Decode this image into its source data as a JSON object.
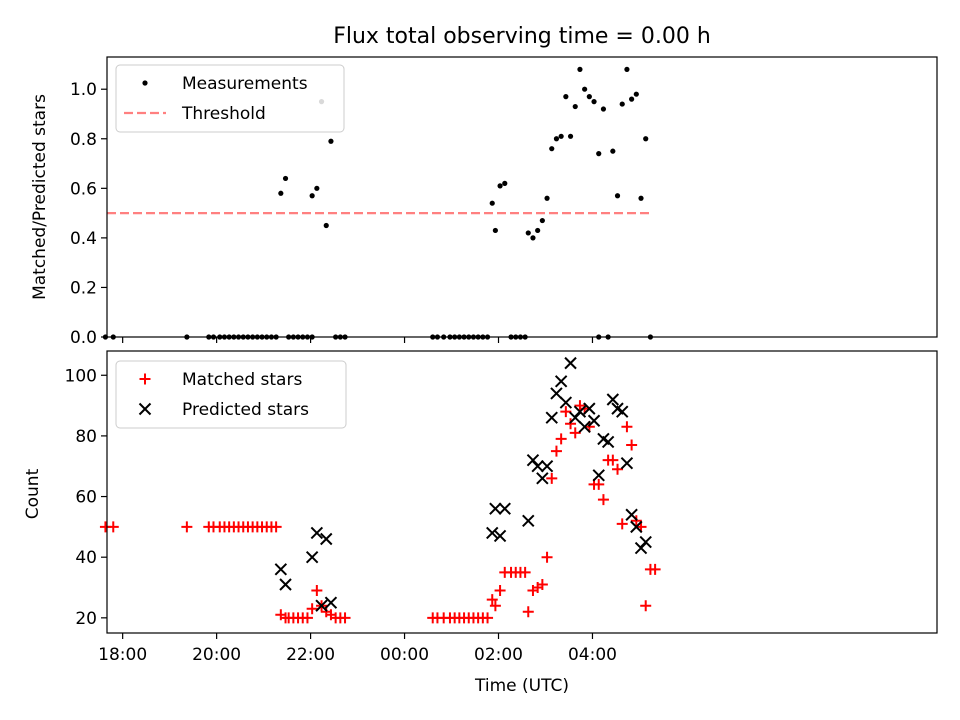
{
  "chart_data": [
    {
      "type": "scatter",
      "title": "Flux total observing time = 0.00 h",
      "xlabel": "",
      "ylabel": "Matched/Predicted stars",
      "xlim": [
        -380,
        680
      ],
      "ylim": [
        0,
        1.13
      ],
      "xticks": [
        -360,
        -240,
        -120,
        0,
        120,
        240
      ],
      "yticks": [
        0.0,
        0.2,
        0.4,
        0.6,
        0.8,
        1.0
      ],
      "ytick_labels": [
        "0.0",
        "0.2",
        "0.4",
        "0.6",
        "0.8",
        "1.0"
      ],
      "legend_position": "upper left",
      "series": [
        {
          "name": "Measurements",
          "marker": "dot",
          "color": "#000000",
          "points": [
            [
              -382,
              0
            ],
            [
              -372,
              0
            ],
            [
              -278,
              0
            ],
            [
              -250,
              0
            ],
            [
              -244,
              0
            ],
            [
              -236,
              0
            ],
            [
              -230,
              0
            ],
            [
              -224,
              0
            ],
            [
              -218,
              0
            ],
            [
              -212,
              0
            ],
            [
              -206,
              0
            ],
            [
              -200,
              0
            ],
            [
              -194,
              0
            ],
            [
              -188,
              0
            ],
            [
              -182,
              0
            ],
            [
              -176,
              0
            ],
            [
              -170,
              0
            ],
            [
              -164,
              0
            ],
            [
              -158,
              0.58
            ],
            [
              -152,
              0.64
            ],
            [
              -148,
              0
            ],
            [
              -142,
              0
            ],
            [
              -136,
              0
            ],
            [
              -130,
              0
            ],
            [
              -124,
              0
            ],
            [
              -118,
              0
            ],
            [
              -118,
              0.57
            ],
            [
              -112,
              0.6
            ],
            [
              -106,
              0.95
            ],
            [
              -100,
              0.45
            ],
            [
              -94,
              0.79
            ],
            [
              -88,
              0
            ],
            [
              -82,
              0
            ],
            [
              -76,
              0
            ],
            [
              36,
              0
            ],
            [
              42,
              0
            ],
            [
              50,
              0
            ],
            [
              58,
              0
            ],
            [
              64,
              0
            ],
            [
              70,
              0
            ],
            [
              76,
              0
            ],
            [
              82,
              0
            ],
            [
              88,
              0
            ],
            [
              94,
              0
            ],
            [
              100,
              0
            ],
            [
              106,
              0
            ],
            [
              112,
              0.54
            ],
            [
              116,
              0.43
            ],
            [
              122,
              0.61
            ],
            [
              128,
              0.62
            ],
            [
              136,
              0
            ],
            [
              142,
              0
            ],
            [
              148,
              0
            ],
            [
              154,
              0
            ],
            [
              158,
              0.42
            ],
            [
              164,
              0.4
            ],
            [
              170,
              0.43
            ],
            [
              176,
              0.47
            ],
            [
              182,
              0.56
            ],
            [
              188,
              0.76
            ],
            [
              194,
              0.8
            ],
            [
              200,
              0.81
            ],
            [
              206,
              0.97
            ],
            [
              212,
              0.81
            ],
            [
              218,
              0.93
            ],
            [
              224,
              1.08
            ],
            [
              230,
              1.0
            ],
            [
              236,
              0.97
            ],
            [
              242,
              0.95
            ],
            [
              248,
              0.74
            ],
            [
              248,
              0
            ],
            [
              254,
              0.92
            ],
            [
              260,
              0
            ],
            [
              266,
              0.75
            ],
            [
              272,
              0.57
            ],
            [
              278,
              0.94
            ],
            [
              284,
              1.08
            ],
            [
              290,
              0.96
            ],
            [
              296,
              0.98
            ],
            [
              302,
              0.56
            ],
            [
              308,
              0.8
            ],
            [
              314,
              0
            ]
          ]
        },
        {
          "name": "Threshold",
          "style": "dashed",
          "color": "#ff8080",
          "x": [
            -380,
            314
          ],
          "y": [
            0.5,
            0.5
          ]
        }
      ]
    },
    {
      "type": "scatter",
      "title": "",
      "xlabel": "Time (UTC)",
      "ylabel": "Count",
      "xlim": [
        -380,
        680
      ],
      "ylim": [
        15,
        108
      ],
      "xticks": [
        -360,
        -240,
        -120,
        0,
        120,
        240
      ],
      "xtick_labels": [
        "18:00",
        "20:00",
        "22:00",
        "00:00",
        "02:00",
        "04:00"
      ],
      "yticks": [
        20,
        40,
        60,
        80,
        100
      ],
      "ytick_labels": [
        "20",
        "40",
        "60",
        "80",
        "100"
      ],
      "legend_position": "upper left",
      "series": [
        {
          "name": "Matched stars",
          "marker": "plus",
          "color": "#ff0000",
          "points": [
            [
              -382,
              50
            ],
            [
              -372,
              50
            ],
            [
              -278,
              50
            ],
            [
              -250,
              50
            ],
            [
              -244,
              50
            ],
            [
              -236,
              50
            ],
            [
              -230,
              50
            ],
            [
              -224,
              50
            ],
            [
              -218,
              50
            ],
            [
              -212,
              50
            ],
            [
              -206,
              50
            ],
            [
              -200,
              50
            ],
            [
              -194,
              50
            ],
            [
              -188,
              50
            ],
            [
              -182,
              50
            ],
            [
              -176,
              50
            ],
            [
              -170,
              50
            ],
            [
              -164,
              50
            ],
            [
              -158,
              21
            ],
            [
              -152,
              20
            ],
            [
              -148,
              20
            ],
            [
              -142,
              20
            ],
            [
              -136,
              20
            ],
            [
              -130,
              20
            ],
            [
              -124,
              20
            ],
            [
              -118,
              23
            ],
            [
              -112,
              29
            ],
            [
              -106,
              24
            ],
            [
              -100,
              22
            ],
            [
              -94,
              21
            ],
            [
              -88,
              20
            ],
            [
              -82,
              20
            ],
            [
              -76,
              20
            ],
            [
              36,
              20
            ],
            [
              42,
              20
            ],
            [
              50,
              20
            ],
            [
              58,
              20
            ],
            [
              64,
              20
            ],
            [
              70,
              20
            ],
            [
              76,
              20
            ],
            [
              82,
              20
            ],
            [
              88,
              20
            ],
            [
              94,
              20
            ],
            [
              100,
              20
            ],
            [
              106,
              20
            ],
            [
              112,
              26
            ],
            [
              116,
              24
            ],
            [
              122,
              29
            ],
            [
              128,
              35
            ],
            [
              136,
              35
            ],
            [
              142,
              35
            ],
            [
              148,
              35
            ],
            [
              154,
              35
            ],
            [
              158,
              22
            ],
            [
              164,
              29
            ],
            [
              170,
              30
            ],
            [
              176,
              31
            ],
            [
              182,
              40
            ],
            [
              188,
              66
            ],
            [
              194,
              75
            ],
            [
              200,
              79
            ],
            [
              206,
              88
            ],
            [
              212,
              84
            ],
            [
              218,
              81
            ],
            [
              224,
              90
            ],
            [
              230,
              89
            ],
            [
              236,
              83
            ],
            [
              242,
              64
            ],
            [
              248,
              64
            ],
            [
              254,
              59
            ],
            [
              260,
              72
            ],
            [
              266,
              72
            ],
            [
              272,
              69
            ],
            [
              278,
              51
            ],
            [
              284,
              83
            ],
            [
              290,
              77
            ],
            [
              296,
              52
            ],
            [
              302,
              50
            ],
            [
              308,
              24
            ],
            [
              314,
              36
            ],
            [
              320,
              36
            ]
          ]
        },
        {
          "name": "Predicted stars",
          "marker": "x",
          "color": "#000000",
          "points": [
            [
              -158,
              36
            ],
            [
              -152,
              31
            ],
            [
              -118,
              40
            ],
            [
              -112,
              48
            ],
            [
              -106,
              24
            ],
            [
              -100,
              46
            ],
            [
              -94,
              25
            ],
            [
              112,
              48
            ],
            [
              116,
              56
            ],
            [
              122,
              47
            ],
            [
              128,
              56
            ],
            [
              158,
              52
            ],
            [
              164,
              72
            ],
            [
              170,
              70
            ],
            [
              176,
              66
            ],
            [
              182,
              70
            ],
            [
              188,
              86
            ],
            [
              194,
              94
            ],
            [
              200,
              98
            ],
            [
              206,
              91
            ],
            [
              212,
              104
            ],
            [
              218,
              86
            ],
            [
              224,
              88
            ],
            [
              230,
              83
            ],
            [
              236,
              89
            ],
            [
              242,
              85
            ],
            [
              248,
              67
            ],
            [
              254,
              79
            ],
            [
              260,
              78
            ],
            [
              266,
              92
            ],
            [
              272,
              89
            ],
            [
              278,
              88
            ],
            [
              284,
              71
            ],
            [
              290,
              54
            ],
            [
              296,
              50
            ],
            [
              302,
              43
            ],
            [
              308,
              45
            ]
          ]
        }
      ]
    }
  ]
}
